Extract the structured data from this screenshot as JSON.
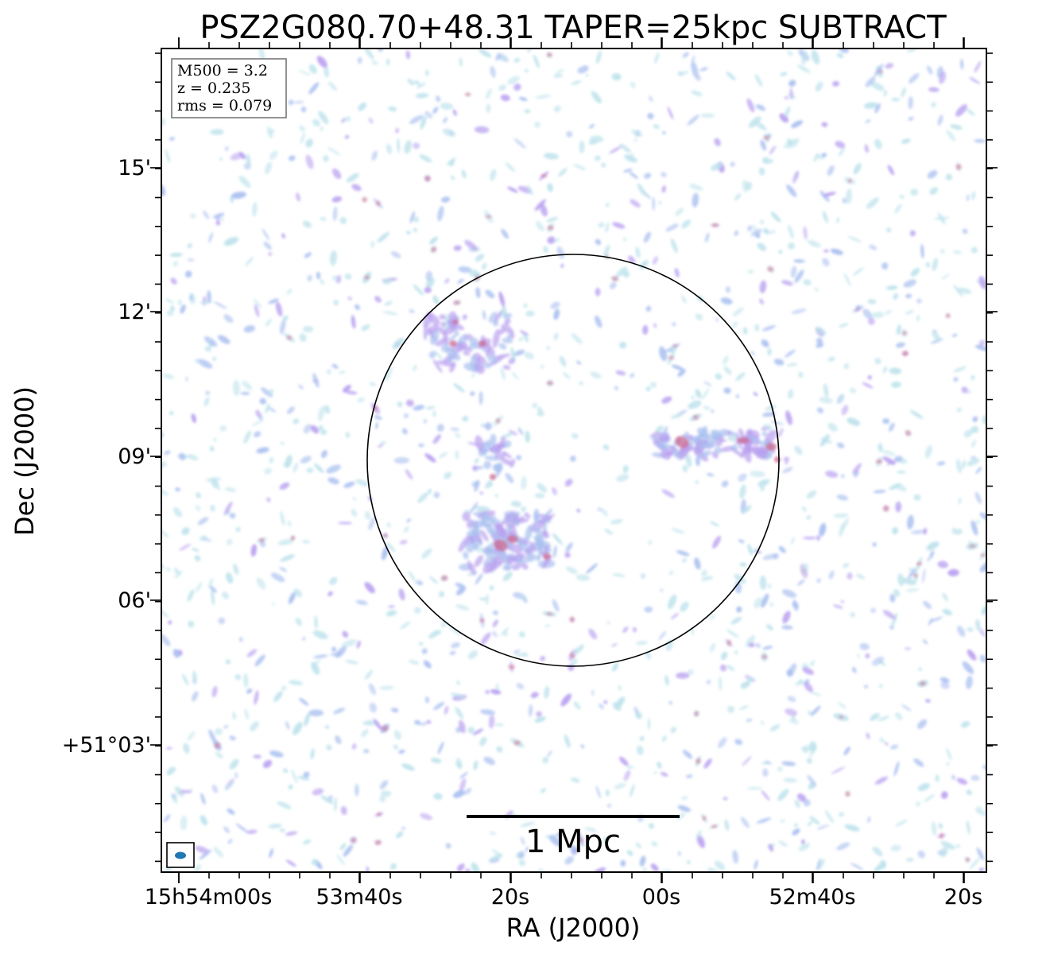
{
  "figure": {
    "title": "PSZ2G080.70+48.31 TAPER=25kpc SUBTRACT",
    "xlabel": "RA (J2000)",
    "ylabel": "Dec (J2000)",
    "xticks": [
      "15h54m00s",
      "53m40s",
      "20s",
      "00s",
      "52m40s",
      "20s"
    ],
    "yticks": [
      "15'",
      "12'",
      "09'",
      "06'",
      "+51°03'"
    ],
    "info": {
      "m500": "M500 = 3.2",
      "z": "z = 0.235",
      "rms": "rms = 0.079"
    },
    "scalebar_label": "1 Mpc",
    "colors": {
      "faint": "#bfe3ec",
      "medium": "#aac0f0",
      "bright": "#b9a0f0",
      "peak": "#cc6f96",
      "beam": "#1f77b4"
    },
    "icons": [
      "beam-ellipse-icon"
    ]
  }
}
